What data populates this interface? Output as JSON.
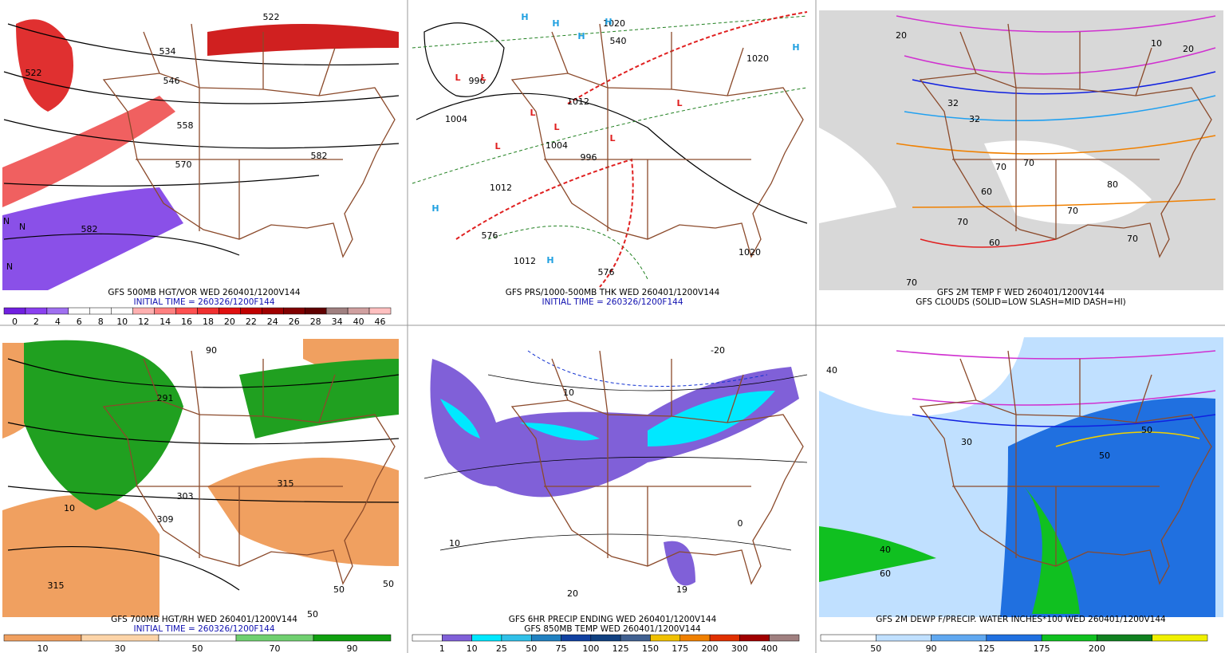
{
  "panels": [
    {
      "captions": [
        "GFS 500MB HGT/VOR WED 260401/1200V144"
      ],
      "initial_time": "INITIAL TIME = 260326/1200F144",
      "labels": [
        "522",
        "534",
        "546",
        "558",
        "570",
        "582",
        "582",
        "522",
        "N",
        "N",
        "N"
      ],
      "colorbar": {
        "colors": [
          "#7020e0",
          "#8a40f0",
          "#a070f0",
          "#ffffff",
          "#ffffff",
          "#ffffff",
          "#ffb0b0",
          "#ff8080",
          "#ff5050",
          "#f03030",
          "#e01010",
          "#c00000",
          "#a00000",
          "#800000",
          "#600000",
          "#a08080",
          "#d0a0a0",
          "#ffc0c0"
        ],
        "labels": [
          "0",
          "2",
          "4",
          "6",
          "8",
          "10",
          "12",
          "14",
          "16",
          "18",
          "20",
          "22",
          "24",
          "26",
          "28",
          "34",
          "40",
          "46"
        ]
      }
    },
    {
      "captions": [
        "GFS PRS/1000-500MB THK WED 260401/1200V144"
      ],
      "initial_time": "INITIAL TIME = 260326/1200F144",
      "labels": [
        "1004",
        "996",
        "1012",
        "1004",
        "996",
        "1012",
        "1020",
        "1020",
        "1012",
        "576",
        "576",
        "540",
        "1020",
        "H",
        "H",
        "H",
        "H",
        "H",
        "H",
        "H",
        "L",
        "L",
        "L",
        "L",
        "L",
        "L",
        "L"
      ]
    },
    {
      "captions": [
        "GFS 2M TEMP F WED 260401/1200V144",
        "GFS CLOUDS (SOLID=LOW SLASH=MID DASH=HI)"
      ],
      "labels": [
        "20",
        "10",
        "20",
        "32",
        "32",
        "70",
        "70",
        "60",
        "80",
        "70",
        "70",
        "60",
        "70",
        "70"
      ]
    },
    {
      "captions": [
        "GFS 700MB HGT/RH WED 260401/1200V144"
      ],
      "initial_time": "INITIAL TIME = 260326/1200F144",
      "labels": [
        "315",
        "303",
        "309",
        "315",
        "291",
        "50",
        "50",
        "50",
        "90",
        "10"
      ],
      "colorbar": {
        "colors": [
          "#f0a060",
          "#fcd4a8",
          "#ffffff",
          "#70d070",
          "#10a010"
        ],
        "labels": [
          "10",
          "30",
          "50",
          "70",
          "90"
        ]
      }
    },
    {
      "captions": [
        "GFS 6HR PRECIP ENDING WED 260401/1200V144",
        "GFS 850MB TEMP WED 260401/1200V144"
      ],
      "labels": [
        "10",
        "-20",
        "10",
        "20",
        "19",
        "0"
      ],
      "colorbar": {
        "colors": [
          "#ffffff",
          "#8060d8",
          "#00e8ff",
          "#30c0e8",
          "#2080c0",
          "#1040a0",
          "#104080",
          "#406090",
          "#f0c000",
          "#f08000",
          "#e03000",
          "#a00000",
          "#a08080"
        ],
        "labels": [
          "1",
          "10",
          "25",
          "50",
          "75",
          "100",
          "125",
          "150",
          "175",
          "200",
          "300",
          "400"
        ]
      }
    },
    {
      "captions": [
        "GFS 2M DEWP F/PRECIP. WATER INCHES*100 WED 260401/1200V144"
      ],
      "labels": [
        "40",
        "30",
        "50",
        "50",
        "60",
        "40"
      ],
      "colorbar": {
        "colors": [
          "#ffffff",
          "#c0e0ff",
          "#60a8f0",
          "#2070e0",
          "#10c020",
          "#108020",
          "#f0f000"
        ],
        "labels": [
          "50",
          "90",
          "125",
          "175",
          "200"
        ]
      }
    }
  ]
}
